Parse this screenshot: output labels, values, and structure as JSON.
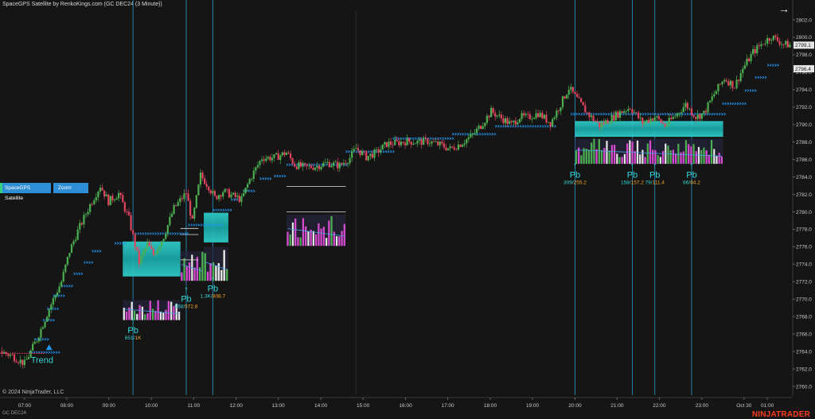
{
  "window": {
    "title": "SpaceGPS Satellite by RenkoKings.com (GC DEC24 (3 Minute))",
    "instrument": "GC DEC24",
    "copyright": "© 2024 NinjaTrader, LLC",
    "brand": "NINJATRADER"
  },
  "toolbar": {
    "satellite_button": "SpaceGPS Satellite",
    "zoom_button": "Zoom",
    "expand_icon": "arrow-right-icon"
  },
  "colors": {
    "background": "#151515",
    "bull": "#4caf50",
    "bear": "#e0455f",
    "zone": "#20b7b7",
    "marker": "#2196f3",
    "vline": "#2a9fd6",
    "label_cyan": "#34d6d6",
    "label_orange": "#f5a623"
  },
  "chart_data": {
    "type": "candlestick",
    "y_axis": {
      "ylim": [
        2759,
        2803
      ],
      "ticks": [
        "2802.0",
        "2800.0",
        "2798.0",
        "2796.0",
        "2794.0",
        "2792.0",
        "2790.0",
        "2788.0",
        "2786.0",
        "2784.0",
        "2782.0",
        "2780.0",
        "2778.0",
        "2776.0",
        "2774.0",
        "2772.0",
        "2770.0",
        "2768.0",
        "2766.0",
        "2764.0",
        "2762.0",
        "2760.0"
      ],
      "tick_values": [
        2802,
        2800,
        2798,
        2796,
        2794,
        2792,
        2790,
        2788,
        2786,
        2784,
        2782,
        2780,
        2778,
        2776,
        2774,
        2772,
        2770,
        2768,
        2766,
        2764,
        2762,
        2760
      ],
      "price_labels": [
        {
          "text": "2799.1",
          "value": 2799.1,
          "color": "#1e1e1e",
          "bg": "#e6e6e6"
        },
        {
          "text": "2796.4",
          "value": 2796.4,
          "color": "#1e1e1e",
          "bg": "#e6e6e6"
        }
      ]
    },
    "x_axis": {
      "labels": [
        "07:00",
        "08:00",
        "09:00",
        "10:00",
        "11:00",
        "12:00",
        "13:00",
        "14:00",
        "15:00",
        "16:00",
        "17:00",
        "18:00",
        "19:00",
        "20:00",
        "21:00",
        "22:00",
        "23:00",
        "Oct 30",
        "01:00"
      ],
      "positions": [
        6.9,
        7.93,
        8.96,
        10.0,
        11.03,
        12.07,
        13.1,
        14.14,
        15.17,
        16.21,
        17.24,
        18.28,
        19.31,
        20.35,
        21.38,
        22.41,
        23.45,
        24.48,
        25.05
      ],
      "range": [
        6.3,
        25.67
      ]
    },
    "price_path": [
      [
        6.3,
        2764.0
      ],
      [
        6.6,
        2763.5
      ],
      [
        6.9,
        2762.6
      ],
      [
        7.2,
        2765.4
      ],
      [
        7.5,
        2768.9
      ],
      [
        7.8,
        2772.0
      ],
      [
        8.0,
        2775.5
      ],
      [
        8.2,
        2777.8
      ],
      [
        8.5,
        2780.8
      ],
      [
        8.75,
        2783.0
      ],
      [
        8.95,
        2781.2
      ],
      [
        9.2,
        2782.1
      ],
      [
        9.45,
        2779.2
      ],
      [
        9.7,
        2774.2
      ],
      [
        9.9,
        2776.3
      ],
      [
        10.05,
        2775.1
      ],
      [
        10.3,
        2777.2
      ],
      [
        10.55,
        2780.4
      ],
      [
        10.85,
        2782.2
      ],
      [
        11.0,
        2778.8
      ],
      [
        11.05,
        2780.2
      ],
      [
        11.2,
        2784.2
      ],
      [
        11.4,
        2782.9
      ],
      [
        11.55,
        2781.6
      ],
      [
        11.75,
        2782.4
      ],
      [
        12.0,
        2781.8
      ],
      [
        12.2,
        2781.4
      ],
      [
        12.4,
        2783.7
      ],
      [
        12.7,
        2786.2
      ],
      [
        13.0,
        2786.2
      ],
      [
        13.3,
        2786.8
      ],
      [
        13.5,
        2785.4
      ],
      [
        13.75,
        2785.1
      ],
      [
        14.0,
        2785.2
      ],
      [
        14.3,
        2785.6
      ],
      [
        14.6,
        2785.3
      ],
      [
        14.85,
        2786.2
      ],
      [
        15.0,
        2787.3
      ],
      [
        15.25,
        2786.3
      ],
      [
        15.5,
        2786.8
      ],
      [
        15.75,
        2787.8
      ],
      [
        16.0,
        2787.9
      ],
      [
        16.25,
        2788.1
      ],
      [
        16.5,
        2788.0
      ],
      [
        16.75,
        2788.1
      ],
      [
        17.1,
        2787.6
      ],
      [
        17.3,
        2787.2
      ],
      [
        17.55,
        2787.8
      ],
      [
        17.85,
        2788.8
      ],
      [
        18.05,
        2789.9
      ],
      [
        18.3,
        2791.5
      ],
      [
        18.6,
        2790.6
      ],
      [
        18.8,
        2790.0
      ],
      [
        19.0,
        2790.9
      ],
      [
        19.2,
        2790.8
      ],
      [
        19.45,
        2791.3
      ],
      [
        19.75,
        2790.2
      ],
      [
        19.95,
        2791.9
      ],
      [
        20.2,
        2794.2
      ],
      [
        20.45,
        2792.6
      ],
      [
        20.65,
        2791.3
      ],
      [
        20.95,
        2789.9
      ],
      [
        21.2,
        2790.6
      ],
      [
        21.45,
        2791.4
      ],
      [
        21.7,
        2792.0
      ],
      [
        22.0,
        2790.2
      ],
      [
        22.3,
        2790.9
      ],
      [
        22.55,
        2789.9
      ],
      [
        22.8,
        2791.0
      ],
      [
        23.05,
        2792.3
      ],
      [
        23.3,
        2790.9
      ],
      [
        23.5,
        2791.3
      ],
      [
        23.75,
        2793.5
      ],
      [
        24.0,
        2795.3
      ],
      [
        24.25,
        2794.4
      ],
      [
        24.45,
        2796.4
      ],
      [
        24.7,
        2798.3
      ],
      [
        24.95,
        2799.4
      ],
      [
        25.15,
        2800.1
      ],
      [
        25.45,
        2799.2
      ],
      [
        25.67,
        2799.1
      ]
    ],
    "vertical_lines": [
      9.55,
      10.85,
      11.5,
      20.35,
      21.75,
      22.3,
      23.2
    ],
    "zones": [
      {
        "x0": 9.3,
        "x1": 10.71,
        "y0": 2772.6,
        "y1": 2776.6,
        "shade": "light"
      },
      {
        "x0": 11.28,
        "x1": 11.88,
        "y0": 2776.5,
        "y1": 2779.9,
        "shade": "light"
      },
      {
        "x0": 20.35,
        "x1": 23.97,
        "y0": 2788.6,
        "y1": 2790.4,
        "shade": "light"
      }
    ],
    "levels": [
      {
        "x0": 10.71,
        "x1": 11.15,
        "y": 2778.1
      },
      {
        "x0": 10.71,
        "x1": 11.15,
        "y": 2777.4
      },
      {
        "x0": 10.71,
        "x1": 11.15,
        "y": 2774.5
      },
      {
        "x0": 13.3,
        "x1": 14.75,
        "y": 2782.9
      },
      {
        "x0": 13.3,
        "x1": 14.75,
        "y": 2780.0
      }
    ],
    "marker_runs": [
      {
        "x0": 7.0,
        "x1": 7.75,
        "y": 2763.9
      },
      {
        "x0": 7.15,
        "x1": 7.5,
        "y": 2765.4
      },
      {
        "x0": 7.35,
        "x1": 7.65,
        "y": 2767.6
      },
      {
        "x0": 7.45,
        "x1": 7.75,
        "y": 2768.9
      },
      {
        "x0": 7.6,
        "x1": 7.85,
        "y": 2770.4
      },
      {
        "x0": 7.8,
        "x1": 8.05,
        "y": 2771.5
      },
      {
        "x0": 8.1,
        "x1": 8.3,
        "y": 2772.9
      },
      {
        "x0": 8.35,
        "x1": 8.55,
        "y": 2774.2
      },
      {
        "x0": 8.55,
        "x1": 8.75,
        "y": 2775.5
      },
      {
        "x0": 9.1,
        "x1": 9.4,
        "y": 2776.4
      },
      {
        "x0": 9.6,
        "x1": 10.9,
        "y": 2777.5
      },
      {
        "x0": 10.9,
        "x1": 11.7,
        "y": 2778.5
      },
      {
        "x0": 11.5,
        "x1": 11.95,
        "y": 2780.2
      },
      {
        "x0": 11.95,
        "x1": 12.15,
        "y": 2781.4
      },
      {
        "x0": 12.25,
        "x1": 12.5,
        "y": 2782.4
      },
      {
        "x0": 12.65,
        "x1": 12.9,
        "y": 2783.8
      },
      {
        "x0": 13.0,
        "x1": 13.3,
        "y": 2784.1
      },
      {
        "x0": 13.3,
        "x1": 14.75,
        "y": 2785.4
      },
      {
        "x0": 14.75,
        "x1": 15.9,
        "y": 2786.9
      },
      {
        "x0": 15.9,
        "x1": 17.35,
        "y": 2788.4
      },
      {
        "x0": 17.35,
        "x1": 18.4,
        "y": 2788.9
      },
      {
        "x0": 18.4,
        "x1": 19.85,
        "y": 2789.8
      },
      {
        "x0": 20.25,
        "x1": 24.0,
        "y": 2791.2
      },
      {
        "x0": 23.95,
        "x1": 24.5,
        "y": 2792.4
      },
      {
        "x0": 24.5,
        "x1": 24.8,
        "y": 2793.9
      },
      {
        "x0": 24.75,
        "x1": 25.05,
        "y": 2795.4
      },
      {
        "x0": 25.05,
        "x1": 25.35,
        "y": 2796.8
      }
    ],
    "volume_panels": [
      {
        "x0": 9.3,
        "x1": 10.71,
        "y_top": 2769.9,
        "y_bot": 2767.6
      },
      {
        "x0": 10.71,
        "x1": 11.28,
        "y_top": 2775.5,
        "y_bot": 2772.1
      },
      {
        "x0": 11.28,
        "x1": 11.88,
        "y_top": 2776.0,
        "y_bot": 2772.1
      },
      {
        "x0": 13.3,
        "x1": 14.75,
        "y_top": 2779.7,
        "y_bot": 2776.1
      },
      {
        "x0": 20.35,
        "x1": 23.97,
        "y_top": 2788.4,
        "y_bot": 2785.5
      }
    ],
    "pullback_labels": [
      {
        "name": "Pb",
        "stats": "651/1K",
        "x": 9.55,
        "y": 2767.2,
        "stats_color": "orange"
      },
      {
        "name": "Pb",
        "stats": "968/572.8",
        "x": 10.85,
        "y": 2770.8,
        "stats_color": "orange"
      },
      {
        "name": "Pb",
        "stats": "1.3K/808.7",
        "x": 11.5,
        "y": 2772.0,
        "stats_color": "orange"
      },
      {
        "name": "Pb",
        "stats": "309/255.2",
        "x": 20.35,
        "y": 2785.0,
        "stats_color": "orange"
      },
      {
        "name": "Pb",
        "stats": "158/157.2",
        "x": 21.75,
        "y": 2785.0,
        "stats_color": "orange"
      },
      {
        "name": "Pb",
        "stats": "79/111.4",
        "x": 22.3,
        "y": 2785.0,
        "stats_color": "orange"
      },
      {
        "name": "Pb",
        "stats": "66/84.2",
        "x": 23.2,
        "y": 2785.0,
        "stats_color": "orange"
      }
    ],
    "trend_label": {
      "text": "Trend",
      "x": 7.15,
      "y": 2763.8
    }
  }
}
